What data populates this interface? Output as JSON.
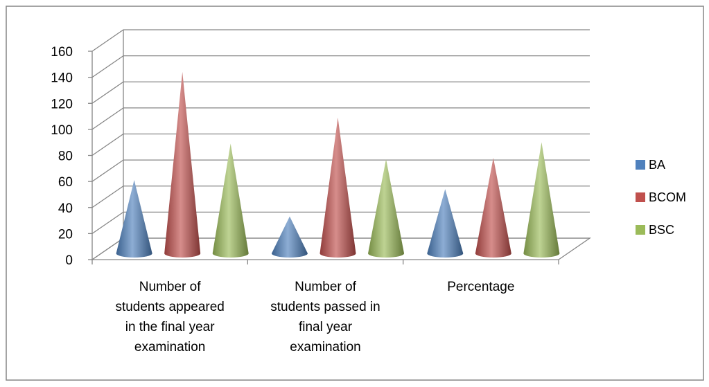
{
  "chart_data": {
    "type": "bar",
    "shape": "cone",
    "three_d": true,
    "categories": [
      "Number of\nstudents appeared\nin the final year\nexamination",
      "Number of\nstudents passed in\nfinal year\nexamination",
      "Percentage"
    ],
    "series": [
      {
        "name": "BA",
        "color": "#4f81bd",
        "values": [
          59,
          31,
          52
        ]
      },
      {
        "name": "BCOM",
        "color": "#c0504d",
        "values": [
          142,
          107,
          76
        ]
      },
      {
        "name": "BSC",
        "color": "#9bbb59",
        "values": [
          87,
          75,
          88
        ]
      }
    ],
    "ylim": [
      0,
      160
    ],
    "yticks": [
      "0",
      "20",
      "40",
      "60",
      "80",
      "100",
      "120",
      "140",
      "160"
    ],
    "grid": true,
    "legend": "right"
  }
}
